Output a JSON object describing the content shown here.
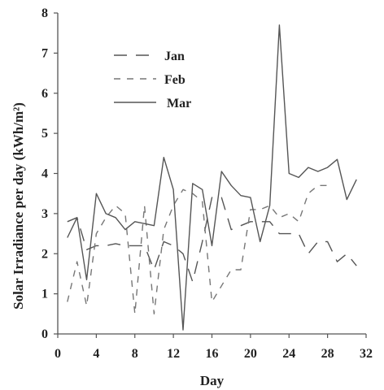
{
  "chart_data": {
    "type": "line",
    "xlabel": "Day",
    "ylabel": "Solar Irradiance per day (kWh/m²)",
    "xlim": [
      0,
      32
    ],
    "ylim": [
      0,
      8
    ],
    "xticks": [
      0,
      4,
      8,
      12,
      16,
      20,
      24,
      28,
      32
    ],
    "yticks": [
      0,
      1,
      2,
      3,
      4,
      5,
      6,
      7,
      8
    ],
    "grid": false,
    "legend_position": "top-left",
    "series": [
      {
        "name": "Jan",
        "style": "long-dash",
        "color": "#555555",
        "x": [
          1,
          2,
          3,
          4,
          5,
          6,
          7,
          8,
          9,
          10,
          11,
          12,
          13,
          14,
          15,
          16,
          17,
          18,
          19,
          20,
          21,
          22,
          23,
          24,
          25,
          26,
          27,
          28,
          29,
          30,
          31
        ],
        "y": [
          2.8,
          2.9,
          2.1,
          2.2,
          2.2,
          2.25,
          2.2,
          2.2,
          2.2,
          1.6,
          2.3,
          2.2,
          2.0,
          1.3,
          2.3,
          3.4,
          3.4,
          2.6,
          2.7,
          2.8,
          2.8,
          2.8,
          2.5,
          2.5,
          2.5,
          2.0,
          2.3,
          2.3,
          1.8,
          2.0,
          1.7
        ]
      },
      {
        "name": "Feb",
        "style": "short-dash",
        "color": "#777777",
        "x": [
          1,
          2,
          3,
          4,
          5,
          6,
          7,
          8,
          9,
          10,
          11,
          12,
          13,
          14,
          15,
          16,
          17,
          18,
          19,
          20,
          21,
          22,
          23,
          24,
          25,
          26,
          27,
          28
        ],
        "y": [
          0.8,
          1.8,
          0.7,
          2.5,
          2.9,
          3.2,
          3.0,
          0.5,
          3.2,
          0.5,
          2.6,
          3.2,
          3.6,
          3.5,
          3.3,
          0.8,
          1.2,
          1.6,
          1.6,
          3.1,
          3.1,
          3.2,
          2.9,
          3.0,
          2.8,
          3.5,
          3.7,
          3.7
        ]
      },
      {
        "name": "Mar",
        "style": "solid",
        "color": "#555555",
        "x": [
          1,
          2,
          3,
          4,
          5,
          6,
          7,
          8,
          9,
          10,
          11,
          12,
          13,
          14,
          15,
          16,
          17,
          18,
          19,
          20,
          21,
          22,
          23,
          24,
          25,
          26,
          27,
          28,
          29,
          30,
          31
        ],
        "y": [
          2.4,
          2.9,
          1.35,
          3.5,
          3.0,
          2.9,
          2.6,
          2.8,
          2.75,
          2.7,
          4.4,
          3.6,
          0.1,
          3.75,
          3.6,
          2.2,
          4.05,
          3.7,
          3.45,
          3.4,
          2.3,
          3.2,
          7.7,
          4.0,
          3.9,
          4.15,
          4.05,
          4.15,
          4.35,
          3.35,
          3.85
        ]
      }
    ]
  }
}
